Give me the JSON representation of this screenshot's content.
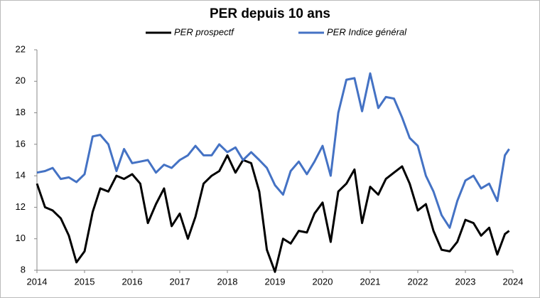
{
  "chart_data": {
    "type": "line",
    "title": "PER depuis 10 ans",
    "x": [
      2014,
      2014.17,
      2014.33,
      2014.5,
      2014.67,
      2014.83,
      2015,
      2015.17,
      2015.33,
      2015.5,
      2015.67,
      2015.83,
      2016,
      2016.17,
      2016.33,
      2016.5,
      2016.67,
      2016.83,
      2017,
      2017.17,
      2017.33,
      2017.5,
      2017.67,
      2017.83,
      2018,
      2018.17,
      2018.33,
      2018.5,
      2018.67,
      2018.83,
      2019,
      2019.17,
      2019.33,
      2019.5,
      2019.67,
      2019.83,
      2020,
      2020.17,
      2020.33,
      2020.5,
      2020.67,
      2020.83,
      2021,
      2021.17,
      2021.33,
      2021.5,
      2021.67,
      2021.83,
      2022,
      2022.17,
      2022.33,
      2022.5,
      2022.67,
      2022.83,
      2023,
      2023.17,
      2023.33,
      2023.5,
      2023.67,
      2023.83,
      2023.92
    ],
    "series": [
      {
        "name": "PER prospectf",
        "color": "#000000",
        "values": [
          13.5,
          12.0,
          11.8,
          11.3,
          10.2,
          8.5,
          9.2,
          11.7,
          13.2,
          13.0,
          14.0,
          13.8,
          14.1,
          13.5,
          11.0,
          12.2,
          13.2,
          10.8,
          11.6,
          10.0,
          11.4,
          13.5,
          14.0,
          14.3,
          15.3,
          14.2,
          15.0,
          14.8,
          13.0,
          9.3,
          7.9,
          10.0,
          9.7,
          10.5,
          10.4,
          11.6,
          12.3,
          9.8,
          13.0,
          13.5,
          14.4,
          11.0,
          13.3,
          12.8,
          13.8,
          14.2,
          14.6,
          13.5,
          11.8,
          12.2,
          10.5,
          9.3,
          9.2,
          9.8,
          11.2,
          11.0,
          10.2,
          10.7,
          9.0,
          10.3,
          10.5
        ]
      },
      {
        "name": "PER Indice général",
        "color": "#4472c4",
        "values": [
          14.2,
          14.3,
          14.5,
          13.8,
          13.9,
          13.6,
          14.1,
          16.5,
          16.6,
          16.0,
          14.3,
          15.7,
          14.8,
          14.9,
          15.0,
          14.2,
          14.7,
          14.5,
          15.0,
          15.3,
          15.9,
          15.3,
          15.3,
          16.0,
          15.5,
          15.8,
          15.0,
          15.5,
          15.0,
          14.5,
          13.4,
          12.8,
          14.3,
          14.9,
          14.1,
          14.9,
          15.9,
          14.0,
          18.0,
          20.1,
          20.2,
          18.1,
          20.5,
          18.3,
          19.0,
          18.9,
          17.7,
          16.4,
          15.9,
          14.0,
          13.0,
          11.5,
          10.7,
          12.4,
          13.7,
          14.0,
          13.2,
          13.5,
          12.4,
          15.3,
          15.7
        ]
      }
    ],
    "xlim": [
      2014,
      2024
    ],
    "xticks": [
      2014,
      2015,
      2016,
      2017,
      2018,
      2019,
      2020,
      2021,
      2022,
      2023,
      2024
    ],
    "ylim": [
      8,
      22
    ],
    "yticks": [
      8,
      10,
      12,
      14,
      16,
      18,
      20,
      22
    ],
    "grid": false
  }
}
